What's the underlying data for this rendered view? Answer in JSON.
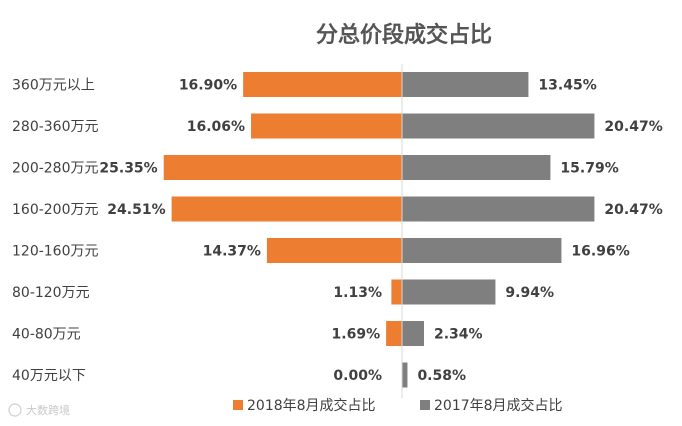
{
  "chart_data": {
    "type": "bar",
    "orientation": "horizontal-butterfly",
    "title": "分总价段成交占比",
    "categories": [
      "360万元以上",
      "280-360万元",
      "200-280万元",
      "160-200万元",
      "120-160万元",
      "80-120万元",
      "40-80万元",
      "40万元以下"
    ],
    "series": [
      {
        "name": "2018年8月成交占比",
        "color": "#ed7d31",
        "side": "left",
        "values": [
          16.9,
          16.06,
          25.35,
          24.51,
          14.37,
          1.13,
          1.69,
          0.0
        ],
        "labels": [
          "16.90%",
          "16.06%",
          "25.35%",
          "24.51%",
          "14.37%",
          "1.13%",
          "1.69%",
          "0.00%"
        ]
      },
      {
        "name": "2017年8月成交占比",
        "color": "#7f7f7f",
        "side": "right",
        "values": [
          13.45,
          20.47,
          15.79,
          20.47,
          16.96,
          9.94,
          2.34,
          0.58
        ],
        "labels": [
          "13.45%",
          "20.47%",
          "15.79%",
          "20.47%",
          "16.96%",
          "9.94%",
          "2.34%",
          "0.58%"
        ]
      }
    ],
    "legend_position": "bottom",
    "grid": false,
    "axis_line_color": "#d9d9d9"
  },
  "watermark": "大数跨境"
}
